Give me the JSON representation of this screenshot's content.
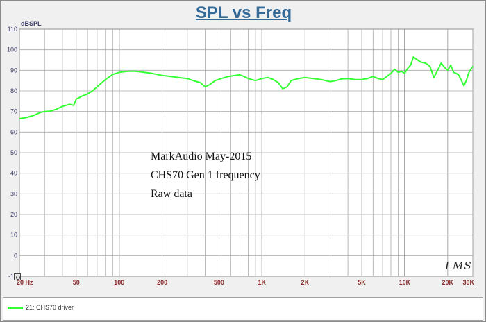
{
  "window": {
    "title": "SPL vs Freq"
  },
  "annotation": {
    "lines": [
      "MarkAudio May-2015",
      "CHS70 Gen 1 frequency",
      "Raw data"
    ],
    "logo_text": "LMS"
  },
  "legend": {
    "entries": [
      {
        "label": "21: CHS70 driver",
        "color": "#33ff33"
      }
    ]
  },
  "chart_data": {
    "type": "line",
    "title": "SPL vs Freq",
    "ylabel": "dBSPL",
    "xlabel": "",
    "xscale": "log",
    "xlim": [
      20,
      30000
    ],
    "ylim": [
      -10,
      110
    ],
    "grid": true,
    "legend_position": "bottom",
    "y_ticks": [
      110,
      100,
      90,
      80,
      70,
      60,
      50,
      40,
      30,
      20,
      10,
      0,
      -10
    ],
    "y_tick_labels": [
      "110",
      "100",
      "90",
      "80",
      "70",
      "60",
      "50",
      "40",
      "30",
      "20",
      "10",
      "0",
      "-10"
    ],
    "x_ticks": [
      20,
      50,
      100,
      200,
      500,
      1000,
      2000,
      5000,
      10000,
      20000,
      30000
    ],
    "x_tick_labels": [
      "20 Hz",
      "50",
      "100",
      "200",
      "500",
      "1K",
      "2K",
      "5K",
      "10K",
      "20K",
      "30K"
    ],
    "series": [
      {
        "name": "21: CHS70 driver",
        "color": "#33ff33",
        "x": [
          20,
          22,
          25,
          28,
          30,
          33,
          36,
          40,
          45,
          48,
          50,
          55,
          60,
          65,
          70,
          80,
          90,
          100,
          115,
          130,
          150,
          170,
          200,
          230,
          260,
          300,
          330,
          370,
          400,
          430,
          470,
          520,
          580,
          650,
          700,
          750,
          800,
          900,
          1000,
          1100,
          1200,
          1300,
          1400,
          1500,
          1600,
          1800,
          2000,
          2300,
          2600,
          3000,
          3300,
          3600,
          4000,
          4500,
          5000,
          5500,
          6000,
          6500,
          7000,
          7500,
          8000,
          8500,
          9000,
          9500,
          10000,
          10500,
          11000,
          11500,
          12000,
          13000,
          14000,
          15000,
          16000,
          17000,
          18000,
          19000,
          20000,
          21000,
          22000,
          23000,
          24000,
          25000,
          26000,
          27000,
          28000,
          29000,
          30000
        ],
        "y": [
          66.5,
          67,
          68,
          69.5,
          70,
          70.2,
          71,
          72.5,
          73.5,
          73,
          76,
          77.5,
          78.5,
          80,
          82,
          85.5,
          88,
          89,
          89.5,
          89.5,
          89,
          88.5,
          87.5,
          87,
          86.5,
          86,
          85,
          84,
          82,
          83,
          85,
          86,
          87,
          87.5,
          87.8,
          87,
          86,
          85,
          86,
          86.5,
          85.5,
          84,
          81,
          82,
          85,
          86,
          86.5,
          86,
          85.5,
          84.5,
          85,
          85.8,
          86,
          85.5,
          85.5,
          86,
          87,
          86,
          85.5,
          87,
          88.5,
          90.5,
          89,
          89.5,
          88.5,
          91,
          92.5,
          96.5,
          95.5,
          94,
          93.5,
          92,
          86.5,
          90,
          93.5,
          91.5,
          90,
          92.5,
          89,
          88.5,
          87.5,
          85,
          82.5,
          85,
          88.5,
          90.5,
          92
        ]
      }
    ]
  }
}
